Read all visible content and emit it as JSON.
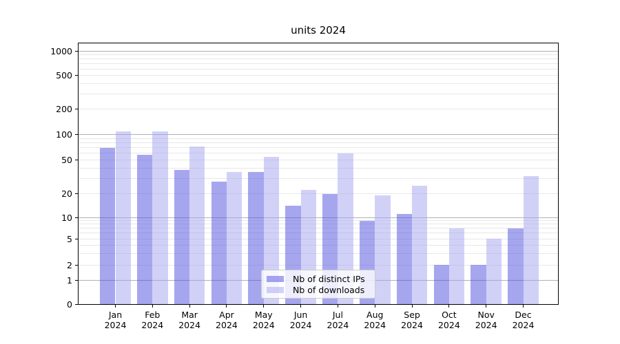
{
  "title": "units 2024",
  "chart_data": {
    "type": "bar",
    "title": "units 2024",
    "categories": [
      "Jan",
      "Feb",
      "Mar",
      "Apr",
      "May",
      "Jun",
      "Jul",
      "Aug",
      "Sep",
      "Oct",
      "Nov",
      "Dec"
    ],
    "year": "2024",
    "series": [
      {
        "name": "Nb of distinct IPs",
        "color": "#4d4ddf",
        "final_color_on_white": "#a6a6ef",
        "alpha": 0.5,
        "values": [
          70,
          58,
          38,
          28,
          36,
          14,
          20,
          9,
          11,
          2,
          2,
          7
        ]
      },
      {
        "name": "Nb of downloads",
        "color": "#a3a3f1",
        "final_color_on_white": "#d9d9f8",
        "alpha": 0.5,
        "values": [
          108,
          108,
          72,
          36,
          54,
          22,
          60,
          19,
          25,
          7,
          5,
          32
        ]
      }
    ],
    "xlabel": "",
    "ylabel": "",
    "yscale": "symlog",
    "yticks": [
      0,
      1,
      2,
      5,
      10,
      20,
      50,
      100,
      200,
      500,
      1000
    ],
    "ylim": [
      0,
      1250
    ],
    "grid": true,
    "grid_major_color": "#b0b0b0",
    "grid_minor_color": "#e7e7e7",
    "legend_position": "lower center"
  }
}
